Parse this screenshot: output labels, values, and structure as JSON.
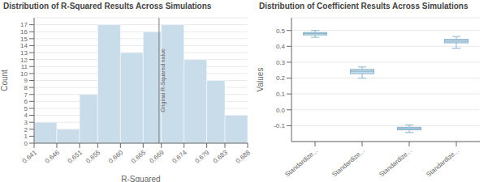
{
  "chart_data": [
    {
      "type": "histogram",
      "title": "Distribution of R-Squared Results Across Simulations",
      "xlabel": "R-Squared",
      "ylabel": "Count",
      "bins": [
        0.641,
        0.646,
        0.651,
        0.655,
        0.66,
        0.665,
        0.669,
        0.674,
        0.679,
        0.683,
        0.688
      ],
      "values": [
        3,
        2,
        7,
        17,
        13,
        16,
        17,
        12,
        9,
        4
      ],
      "color": "#c9dcea",
      "xlim": [
        0.641,
        0.688
      ],
      "xticks": [
        0.641,
        0.646,
        0.651,
        0.655,
        {
          "value": 0.66,
          "label": "0.660"
        },
        0.665,
        0.669,
        0.674,
        0.679,
        0.683,
        0.688
      ],
      "ylim": [
        0,
        18
      ],
      "yticks": [
        0,
        1,
        2,
        3,
        4,
        5,
        6,
        7,
        8,
        9,
        10,
        11,
        12,
        13,
        14,
        15,
        16,
        17
      ],
      "grid": true,
      "annotations": [
        {
          "x": 0.6685,
          "text": "Original R-Squared value",
          "color": "#777777"
        }
      ]
    },
    {
      "type": "box",
      "title": "Distribution of Coefficient Results Across Simulations",
      "ylabel": "Values",
      "categories": [
        "Standardize...",
        "Standardize...",
        "Standardize...",
        "Standardize..."
      ],
      "boxes": [
        {
          "q1": 0.472,
          "median": 0.481,
          "q3": 0.487,
          "whisker_low": 0.457,
          "whisker_high": 0.5
        },
        {
          "q1": 0.228,
          "median": 0.243,
          "q3": 0.255,
          "whisker_low": 0.2,
          "whisker_high": 0.27
        },
        {
          "q1": -0.126,
          "median": -0.118,
          "q3": -0.11,
          "whisker_low": -0.143,
          "whisker_high": -0.095
        },
        {
          "q1": 0.422,
          "median": 0.433,
          "q3": 0.445,
          "whisker_low": 0.388,
          "whisker_high": 0.462
        }
      ],
      "color": "#c9dcea",
      "ylim": [
        -0.2,
        0.58
      ],
      "yticks": [
        -0.1,
        {
          "value": 0,
          "label": "0.0"
        },
        0.1,
        0.2,
        0.3,
        0.4,
        0.5
      ],
      "grid": true
    }
  ]
}
